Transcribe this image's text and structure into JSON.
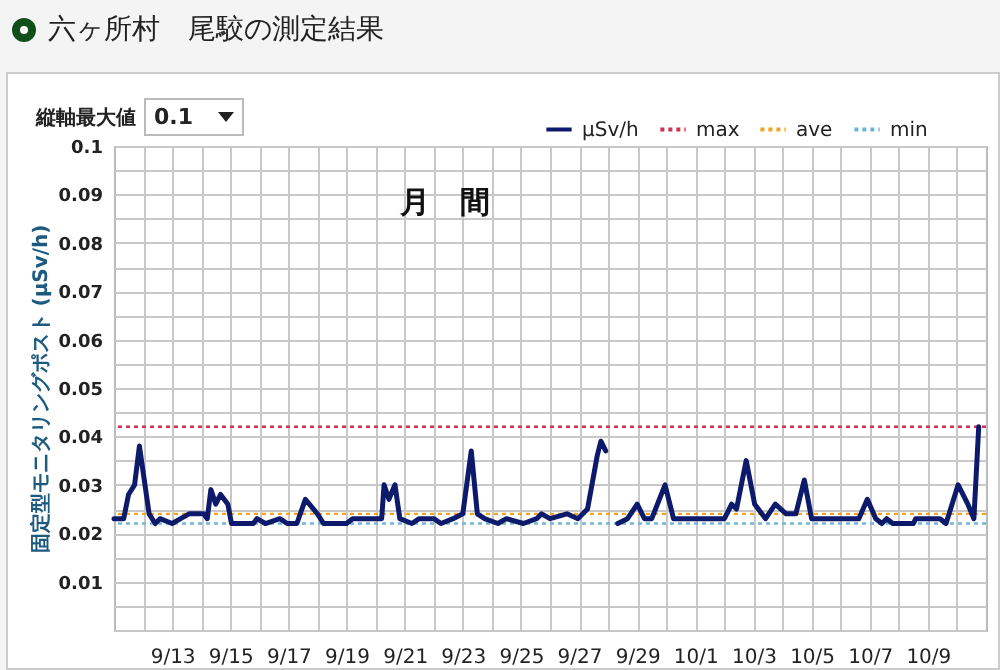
{
  "chart_data": {
    "type": "line",
    "title": "六ヶ所村　尾駮の測定結果",
    "subtitle": "月　間",
    "ylabel": "固定型モニタリングポスト (μSv/h)",
    "annotations": [
      "縦軸最大値",
      "0.1"
    ],
    "x": [
      "--09-11T00:00",
      "--09-11T08:00",
      "--09-11T12:00",
      "--09-11T17:00",
      "--09-11T21:00",
      "--09-12T05:00",
      "--09-12T10:00",
      "--09-12T14:00",
      "--09-13T00:00",
      "--09-13T07:00",
      "--09-13T14:00",
      "--09-14T02:00",
      "--09-14T05:00",
      "--09-14T08:00",
      "--09-14T12:00",
      "--09-14T16:00",
      "--09-14T22:00",
      "--09-15T01:00",
      "--09-15T19:00",
      "--09-15T22:00",
      "--09-16T05:00",
      "--09-16T17:00",
      "--09-16T23:00",
      "--09-17T07:00",
      "--09-17T14:00",
      "--09-18T00:00",
      "--09-18T05:00",
      "--09-19T00:00",
      "--09-19T05:00",
      "--09-20T05:00",
      "--09-20T07:00",
      "--09-20T11:00",
      "--09-20T16:00",
      "--09-20T20:00",
      "--09-21T06:00",
      "--09-21T12:00",
      "--09-22T00:00",
      "--09-22T06:00",
      "--09-22T16:00",
      "--09-23T00:00",
      "--09-23T07:00",
      "--09-23T12:00",
      "--09-23T18:00",
      "--09-24T05:00",
      "--09-24T12:00",
      "--09-25T02:00",
      "--09-25T13:00",
      "--09-25T17:00",
      "--09-26T00:00",
      "--09-26T14:00",
      "--09-26T23:00",
      "--09-27T07:00",
      "--09-27T15:00",
      "--09-27T18:00",
      "--09-27T22:00",
      "--09-28T04:00",
      "--09-28T08:00",
      "--09-28T16:00",
      "--09-29T00:00",
      "--09-29T06:00",
      "--09-29T12:00",
      "--09-29T23:00",
      "--09-30T06:00",
      "--10-02T00:00",
      "--10-02T06:00",
      "--10-02T10:00",
      "--10-02T18:00",
      "--10-03T01:00",
      "--10-03T10:00",
      "--10-03T18:00",
      "--10-04T03:00",
      "--10-04T11:00",
      "--10-04T18:00",
      "--10-05T00:00",
      "--10-06T15:00",
      "--10-06T22:00",
      "--10-07T05:00",
      "--10-07T10:00",
      "--10-07T14:00",
      "--10-07T19:00",
      "--10-08T12:00",
      "--10-08T14:00",
      "--10-09T10:00",
      "--10-09T15:00",
      "--10-10T01:00",
      "--10-10T09:00",
      "--10-10T14:00",
      "--10-10T18:00"
    ],
    "series": [
      {
        "name": "μSv/h",
        "color": "#0d1a6b",
        "values": [
          0.023,
          0.023,
          0.028,
          0.03,
          0.038,
          0.024,
          0.022,
          0.023,
          0.022,
          0.023,
          0.024,
          0.024,
          0.023,
          0.029,
          0.026,
          0.028,
          0.026,
          0.022,
          0.022,
          0.023,
          0.022,
          0.023,
          0.022,
          0.022,
          0.027,
          0.024,
          0.022,
          0.022,
          0.023,
          0.023,
          0.03,
          0.027,
          0.03,
          0.023,
          0.022,
          0.023,
          0.023,
          0.022,
          0.023,
          0.024,
          0.037,
          0.024,
          0.023,
          0.022,
          0.023,
          0.022,
          0.023,
          0.024,
          0.023,
          0.024,
          0.023,
          0.025,
          0.036,
          0.039,
          0.037,
          null,
          0.022,
          0.023,
          0.026,
          0.023,
          0.023,
          0.03,
          0.023,
          0.023,
          0.026,
          0.025,
          0.035,
          0.026,
          0.023,
          0.026,
          0.024,
          0.024,
          0.031,
          0.023,
          0.023,
          0.027,
          0.023,
          0.022,
          0.023,
          0.022,
          0.022,
          0.023,
          0.023,
          0.022,
          0.03,
          0.026,
          0.023,
          0.042
        ]
      }
    ],
    "ref_lines": [
      {
        "axis": "y",
        "value": 0.042,
        "label": "max",
        "color": "#d4304f",
        "line_style": "dotted"
      },
      {
        "axis": "y",
        "value": 0.024,
        "label": "ave",
        "color": "#f2a51a",
        "line_style": "dotted"
      },
      {
        "axis": "y",
        "value": 0.022,
        "label": "min",
        "color": "#6fb6d6",
        "line_style": "dotted"
      }
    ],
    "xlim": [
      "--09-11T00:00",
      "--10-11T00:00"
    ],
    "xticks": [
      {
        "value": "--09-12",
        "label": null
      },
      {
        "value": "--09-13",
        "label": "9/13"
      },
      {
        "value": "--09-14",
        "label": null
      },
      {
        "value": "--09-15",
        "label": "9/15"
      },
      {
        "value": "--09-16",
        "label": null
      },
      {
        "value": "--09-17",
        "label": "9/17"
      },
      {
        "value": "--09-18",
        "label": null
      },
      {
        "value": "--09-19",
        "label": "9/19"
      },
      {
        "value": "--09-20",
        "label": null
      },
      {
        "value": "--09-21",
        "label": "9/21"
      },
      {
        "value": "--09-22",
        "label": null
      },
      {
        "value": "--09-23",
        "label": "9/23"
      },
      {
        "value": "--09-24",
        "label": null
      },
      {
        "value": "--09-25",
        "label": "9/25"
      },
      {
        "value": "--09-26",
        "label": null
      },
      {
        "value": "--09-27",
        "label": "9/27"
      },
      {
        "value": "--09-28",
        "label": null
      },
      {
        "value": "--09-29",
        "label": "9/29"
      },
      {
        "value": "--09-30",
        "label": null
      },
      {
        "value": "--10-01",
        "label": "10/1"
      },
      {
        "value": "--10-02",
        "label": null
      },
      {
        "value": "--10-03",
        "label": "10/3"
      },
      {
        "value": "--10-04",
        "label": null
      },
      {
        "value": "--10-05",
        "label": "10/5"
      },
      {
        "value": "--10-06",
        "label": null
      },
      {
        "value": "--10-07",
        "label": "10/7"
      },
      {
        "value": "--10-08",
        "label": null
      },
      {
        "value": "--10-09",
        "label": "10/9"
      },
      {
        "value": "--10-10",
        "label": null
      }
    ],
    "ylim": [
      0,
      0.1
    ],
    "yticks": [
      {
        "value": 0,
        "label": null
      },
      {
        "value": 0.005,
        "label": null
      },
      0.01,
      {
        "value": 0.015,
        "label": null
      },
      0.02,
      {
        "value": 0.025,
        "label": null
      },
      0.03,
      {
        "value": 0.035,
        "label": null
      },
      0.04,
      {
        "value": 0.045,
        "label": null
      },
      0.05,
      {
        "value": 0.055,
        "label": null
      },
      0.06,
      {
        "value": 0.065,
        "label": null
      },
      0.07,
      {
        "value": 0.075,
        "label": null
      },
      0.08,
      {
        "value": 0.085,
        "label": null
      },
      0.09,
      {
        "value": 0.095,
        "label": null
      },
      0.1
    ],
    "grid": true,
    "legend": "top right",
    "marker": "none",
    "line_style": "solid"
  }
}
